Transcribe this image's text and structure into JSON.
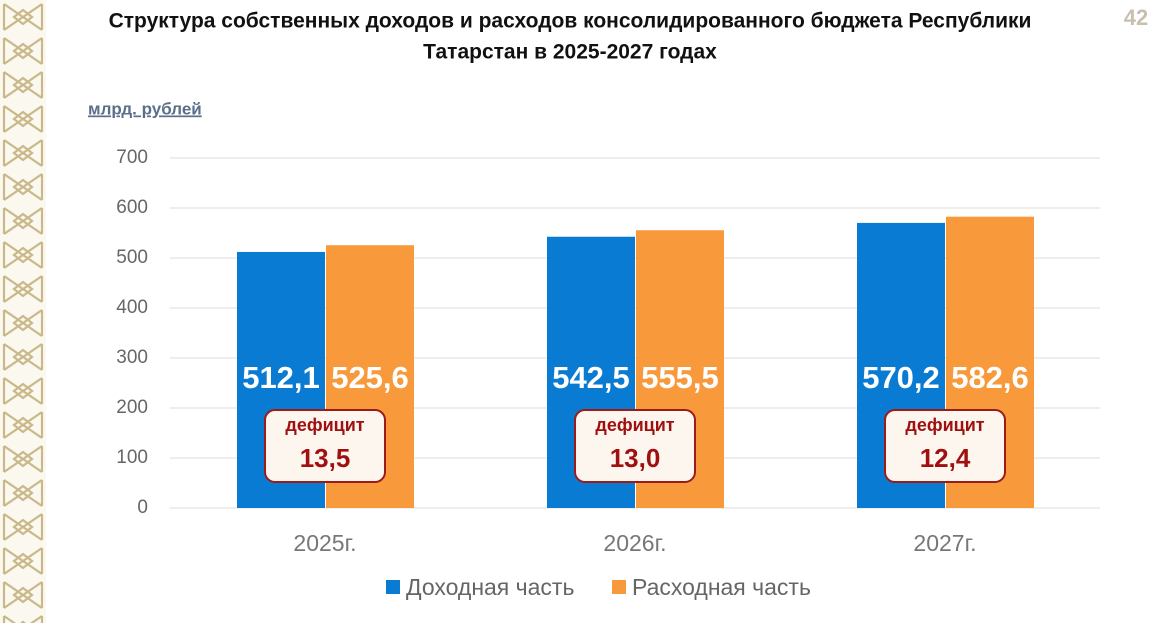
{
  "page": {
    "number": "42"
  },
  "chart_data": {
    "type": "bar",
    "title": "Структура собственных доходов и расходов консолидированного бюджета Республики Татарстан в 2025-2027 годах",
    "title_lines": [
      "Структура собственных доходов и расходов консолидированного бюджета Республики",
      "Татарстан в 2025-2027 годах"
    ],
    "y_label": "млрд. рублей",
    "categories": [
      "2025г.",
      "2026г.",
      "2027г."
    ],
    "series": [
      {
        "name": "Доходная часть",
        "color": "#0a7bd3",
        "values": [
          512.1,
          542.5,
          570.2
        ],
        "value_labels": [
          "512,1",
          "542,5",
          "570,2"
        ]
      },
      {
        "name": "Расходная часть",
        "color": "#f89a3b",
        "values": [
          525.6,
          555.5,
          582.6
        ],
        "value_labels": [
          "525,6",
          "555,5",
          "582,6"
        ]
      }
    ],
    "deficit": {
      "label": "дефицит",
      "values": [
        13.5,
        13.0,
        12.4
      ],
      "value_labels": [
        "13,5",
        "13,0",
        "12,4"
      ]
    },
    "ylim": [
      0,
      700
    ],
    "yticks": [
      0,
      100,
      200,
      300,
      400,
      500,
      600,
      700
    ],
    "grid": true,
    "legend": "bottom"
  }
}
